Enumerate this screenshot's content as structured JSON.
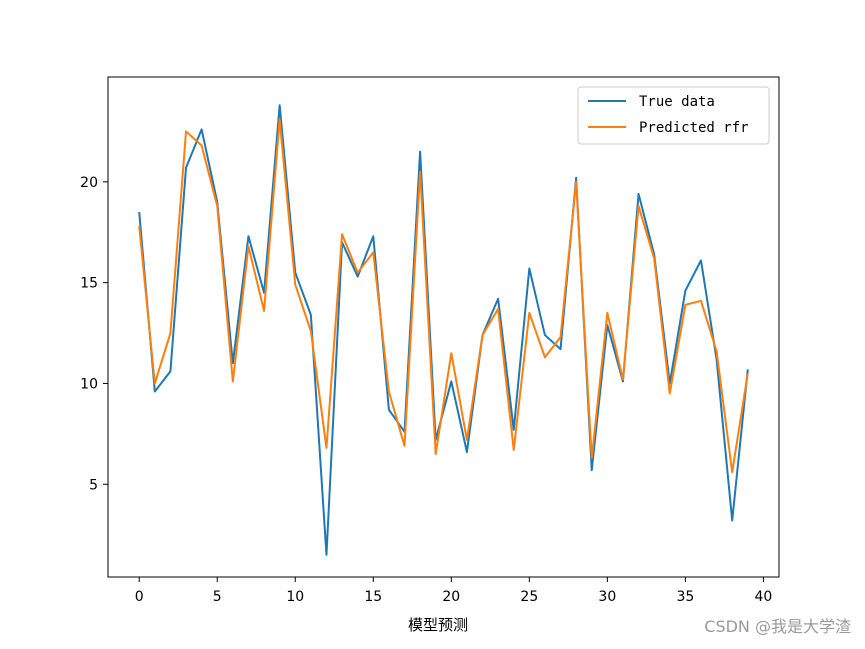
{
  "chart_data": {
    "type": "line",
    "title": "",
    "xlabel": "模型预测",
    "ylabel": "",
    "x": [
      0,
      1,
      2,
      3,
      4,
      5,
      6,
      7,
      8,
      9,
      10,
      11,
      12,
      13,
      14,
      15,
      16,
      17,
      18,
      19,
      20,
      21,
      22,
      23,
      24,
      25,
      26,
      27,
      28,
      29,
      30,
      31,
      32,
      33,
      34,
      35,
      36,
      37,
      38,
      39
    ],
    "series": [
      {
        "name": "True data",
        "color": "#1f77b4",
        "values": [
          18.5,
          9.6,
          10.6,
          20.7,
          22.6,
          19.0,
          11.0,
          17.3,
          14.5,
          23.8,
          15.5,
          13.4,
          1.5,
          17.0,
          15.3,
          17.3,
          8.7,
          7.6,
          21.5,
          7.2,
          10.1,
          6.6,
          12.4,
          14.2,
          7.7,
          15.7,
          12.4,
          11.7,
          20.2,
          5.7,
          12.9,
          10.1,
          19.4,
          16.4,
          10.0,
          14.6,
          16.1,
          11.2,
          3.2,
          10.7
        ]
      },
      {
        "name": "Predicted rfr",
        "color": "#ff7f0e",
        "values": [
          17.8,
          10.0,
          12.5,
          22.5,
          21.8,
          18.8,
          10.1,
          16.8,
          13.6,
          23.1,
          14.9,
          12.6,
          6.8,
          17.4,
          15.5,
          16.5,
          9.6,
          6.9,
          20.5,
          6.5,
          11.5,
          7.2,
          12.4,
          13.7,
          6.7,
          13.5,
          11.3,
          12.3,
          20.0,
          6.3,
          13.5,
          10.2,
          18.8,
          16.2,
          9.5,
          13.9,
          14.1,
          11.6,
          5.6,
          10.5
        ]
      }
    ],
    "xlim": [
      -2,
      41
    ],
    "ylim": [
      0.4,
      25.2
    ],
    "x_ticks": [
      0,
      5,
      10,
      15,
      20,
      25,
      30,
      35,
      40
    ],
    "y_ticks": [
      5,
      10,
      15,
      20
    ],
    "grid": false,
    "legend_position": "top-right"
  },
  "watermark": "CSDN @我是大学渣"
}
